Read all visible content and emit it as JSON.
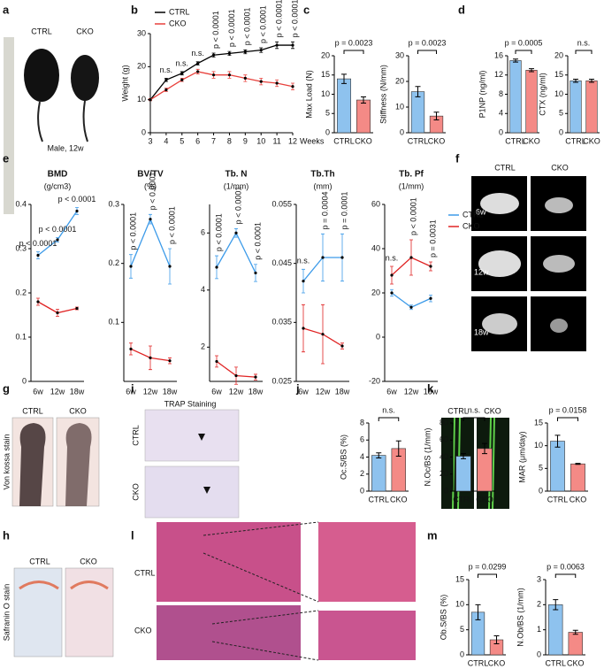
{
  "panel_letters": [
    "a",
    "b",
    "c",
    "d",
    "e",
    "f",
    "g",
    "h",
    "i",
    "j",
    "k",
    "l",
    "m"
  ],
  "images": {
    "a": {
      "labels": [
        "CTRL",
        "CKO"
      ],
      "caption": "Male, 12w"
    },
    "f": {
      "columns": [
        "CTRL",
        "CKO"
      ],
      "rows": [
        "6w",
        "12w",
        "18w"
      ]
    },
    "g": {
      "labels": [
        "CTRL",
        "CKO"
      ],
      "caption": "Von kossa stain"
    },
    "h": {
      "labels": [
        "CTRL",
        "CKO"
      ],
      "caption": "Safranin O stain"
    },
    "i": {
      "title": "TRAP Staining",
      "rows": [
        "CTRL",
        "CKO"
      ]
    },
    "k": {
      "labels": [
        "CTRL",
        "CKO"
      ]
    },
    "l": {
      "rows": [
        "CTRL",
        "CKO"
      ]
    }
  },
  "chart_data": [
    {
      "type": "line",
      "ylabel": "Weight (g)",
      "xlabel": "Weeks",
      "x": [
        3,
        4,
        5,
        6,
        7,
        8,
        9,
        10,
        11,
        12
      ],
      "xlim": [
        3,
        12
      ],
      "xticks": [
        3,
        4,
        5,
        6,
        7,
        8,
        9,
        10,
        11,
        12
      ],
      "ylim": [
        0,
        30
      ],
      "yticks": [
        0,
        10,
        20,
        30
      ],
      "legend": "upper left",
      "series": [
        {
          "name": "CTRL",
          "color": "#000000",
          "values": [
            10,
            16,
            18,
            21,
            23.5,
            24,
            24.5,
            25,
            26.5,
            26.5
          ],
          "errors": [
            0.3,
            0.5,
            0.5,
            0.5,
            0.6,
            0.6,
            0.6,
            0.7,
            1,
            1
          ]
        },
        {
          "name": "CKO",
          "color": "#e8413c",
          "values": [
            10,
            13,
            16,
            18.5,
            17.5,
            17.5,
            16.5,
            15.5,
            15,
            14
          ],
          "errors": [
            0.3,
            0.5,
            0.5,
            0.7,
            1,
            1,
            1,
            1,
            1,
            1
          ]
        }
      ],
      "annotations": [
        null,
        "n.s.",
        "n.s.",
        "n.s.",
        "p < 0.0001",
        "p < 0.0001",
        "p < 0.0001",
        "p < 0.0001",
        "p < 0.0001",
        "p < 0.0001"
      ]
    },
    {
      "type": "bar",
      "ylabel": "Max Load (N)",
      "categories": [
        "CTRL",
        "CKO"
      ],
      "values": [
        14,
        8.5
      ],
      "errors": [
        1.2,
        0.8
      ],
      "colors": [
        "#8ec2ee",
        "#f48a86"
      ],
      "ylim": [
        0,
        20
      ],
      "yticks": [
        0,
        5,
        10,
        15,
        20
      ],
      "annotation": "p = 0.0023"
    },
    {
      "type": "bar",
      "ylabel": "Stiffness (N/mm)",
      "categories": [
        "CTRL",
        "CKO"
      ],
      "values": [
        16,
        6.5
      ],
      "errors": [
        2,
        1.5
      ],
      "colors": [
        "#8ec2ee",
        "#f48a86"
      ],
      "ylim": [
        0,
        30
      ],
      "yticks": [
        0,
        10,
        20,
        30
      ],
      "annotation": "p = 0.0023"
    },
    {
      "type": "bar",
      "ylabel": "P1NP (ng/ml)",
      "categories": [
        "CTRL",
        "CKO"
      ],
      "values": [
        15,
        13
      ],
      "errors": [
        0.3,
        0.3
      ],
      "colors": [
        "#8ec2ee",
        "#f48a86"
      ],
      "ylim": [
        0,
        16
      ],
      "yticks": [
        0,
        4,
        8,
        12,
        16
      ],
      "annotation": "p = 0.0005"
    },
    {
      "type": "bar",
      "ylabel": "CTX (ng/ml)",
      "categories": [
        "CTRL",
        "CKO"
      ],
      "values": [
        13.5,
        13.5
      ],
      "errors": [
        0.4,
        0.4
      ],
      "colors": [
        "#8ec2ee",
        "#f48a86"
      ],
      "ylim": [
        0,
        20
      ],
      "yticks": [
        0,
        5,
        10,
        15,
        20
      ],
      "annotation": "n.s."
    },
    {
      "type": "line",
      "title": "BMD",
      "subtitle": "(g/cm3)",
      "categories": [
        "6w",
        "12w",
        "18w"
      ],
      "ylim": [
        0,
        0.4
      ],
      "yticks": [
        0,
        0.1,
        0.2,
        0.3,
        0.4
      ],
      "series": [
        {
          "color": "#3d9be9",
          "values": [
            0.285,
            0.32,
            0.385
          ],
          "errors": [
            0.008,
            0.005,
            0.008
          ]
        },
        {
          "color": "#e02424",
          "values": [
            0.18,
            0.155,
            0.165
          ],
          "errors": [
            0.008,
            0.008,
            0.003
          ]
        }
      ],
      "annotations": [
        "p < 0.0001",
        "p < 0.0001",
        "p < 0.0001"
      ]
    },
    {
      "type": "line",
      "title": "BV/TV",
      "subtitle": "(%)",
      "categories": [
        "6w",
        "12w",
        "18w"
      ],
      "ylim": [
        0,
        0.3
      ],
      "yticks": [
        0.1,
        0.2,
        0.3
      ],
      "series": [
        {
          "color": "#3d9be9",
          "values": [
            0.195,
            0.275,
            0.195
          ],
          "errors": [
            0.02,
            0.008,
            0.03
          ]
        },
        {
          "color": "#e02424",
          "values": [
            0.055,
            0.04,
            0.035
          ],
          "errors": [
            0.01,
            0.02,
            0.005
          ]
        }
      ],
      "annotations": [
        "p < 0.0001",
        "p < 0.0001",
        "p < 0.0001"
      ]
    },
    {
      "type": "line",
      "title": "Tb. N",
      "subtitle": "(1/mm)",
      "categories": [
        "6w",
        "12w",
        "18w"
      ],
      "ylim": [
        0.8,
        7
      ],
      "yticks": [
        2,
        4,
        6
      ],
      "series": [
        {
          "color": "#3d9be9",
          "values": [
            4.8,
            6,
            4.6
          ],
          "errors": [
            0.4,
            0.15,
            0.3
          ]
        },
        {
          "color": "#e02424",
          "values": [
            1.5,
            1,
            0.95
          ],
          "errors": [
            0.2,
            0.3,
            0.1
          ]
        }
      ],
      "annotations": [
        "p < 0.0001",
        "p < 0.0001",
        "p < 0.0001"
      ]
    },
    {
      "type": "line",
      "title": "Tb.Th",
      "subtitle": "(mm)",
      "categories": [
        "6w",
        "12w",
        "18w"
      ],
      "ylim": [
        0.025,
        0.055
      ],
      "yticks": [
        0.025,
        0.035,
        0.045,
        0.055
      ],
      "series": [
        {
          "color": "#3d9be9",
          "values": [
            0.042,
            0.046,
            0.046
          ],
          "errors": [
            0.002,
            0.004,
            0.004
          ]
        },
        {
          "color": "#e02424",
          "values": [
            0.034,
            0.033,
            0.031
          ],
          "errors": [
            0.004,
            0.005,
            0.0005
          ]
        }
      ],
      "annotations": [
        "n.s.",
        "p = 0.0004",
        "p = 0.0001"
      ]
    },
    {
      "type": "line",
      "title": "Tb. Pf",
      "subtitle": "(1/mm)",
      "categories": [
        "6w",
        "12w",
        "18w"
      ],
      "ylim": [
        -20,
        60
      ],
      "yticks": [
        -20,
        0,
        20,
        40,
        60
      ],
      "legend": "right",
      "series": [
        {
          "name": "CTRL",
          "color": "#3d9be9",
          "values": [
            20,
            13.5,
            17.5
          ],
          "errors": [
            1.5,
            1,
            1.5
          ]
        },
        {
          "name": "CKO",
          "color": "#e02424",
          "values": [
            28,
            36,
            32
          ],
          "errors": [
            4,
            8,
            2
          ]
        }
      ],
      "annotations": [
        "n.s.",
        "p < 0.0001",
        "p = 0.0031"
      ]
    },
    {
      "type": "bar",
      "ylabel": "Oc.S/BS (%)",
      "categories": [
        "CTRL",
        "CKO"
      ],
      "values": [
        4.2,
        5
      ],
      "errors": [
        0.3,
        0.9
      ],
      "colors": [
        "#8ec2ee",
        "#f48a86"
      ],
      "ylim": [
        0,
        8
      ],
      "yticks": [
        0,
        2,
        4,
        6,
        8
      ],
      "annotation": "n.s."
    },
    {
      "type": "bar",
      "ylabel": "N.Oc/BS (1/mm)",
      "categories": [
        "CTRL",
        "CKO"
      ],
      "values": [
        41,
        50
      ],
      "errors": [
        3,
        6
      ],
      "colors": [
        "#8ec2ee",
        "#f48a86"
      ],
      "ylim": [
        0,
        80
      ],
      "yticks": [
        0,
        20,
        40,
        60,
        80
      ],
      "annotation": "n.s."
    },
    {
      "type": "bar",
      "ylabel": "MAR (μm/day)",
      "categories": [
        "CTRL",
        "CKO"
      ],
      "values": [
        11,
        6
      ],
      "errors": [
        1.3,
        0.1
      ],
      "colors": [
        "#8ec2ee",
        "#f48a86"
      ],
      "ylim": [
        0,
        15
      ],
      "yticks": [
        0,
        5,
        10,
        15
      ],
      "annotation": "p = 0.0158"
    },
    {
      "type": "bar",
      "ylabel": "Ob.S/BS (%)",
      "categories": [
        "CTRL",
        "CKO"
      ],
      "values": [
        8.5,
        3
      ],
      "errors": [
        1.5,
        0.8
      ],
      "colors": [
        "#8ec2ee",
        "#f48a86"
      ],
      "ylim": [
        0,
        15
      ],
      "yticks": [
        0,
        5,
        10,
        15
      ],
      "annotation": "p = 0.0299"
    },
    {
      "type": "bar",
      "ylabel": "N.Ob/BS (1/mm)",
      "categories": [
        "CTRL",
        "CKO"
      ],
      "values": [
        2,
        0.9
      ],
      "errors": [
        0.2,
        0.08
      ],
      "colors": [
        "#8ec2ee",
        "#f48a86"
      ],
      "ylim": [
        0,
        3
      ],
      "yticks": [
        0,
        1,
        2,
        3
      ],
      "annotation": "p = 0.0063"
    }
  ]
}
